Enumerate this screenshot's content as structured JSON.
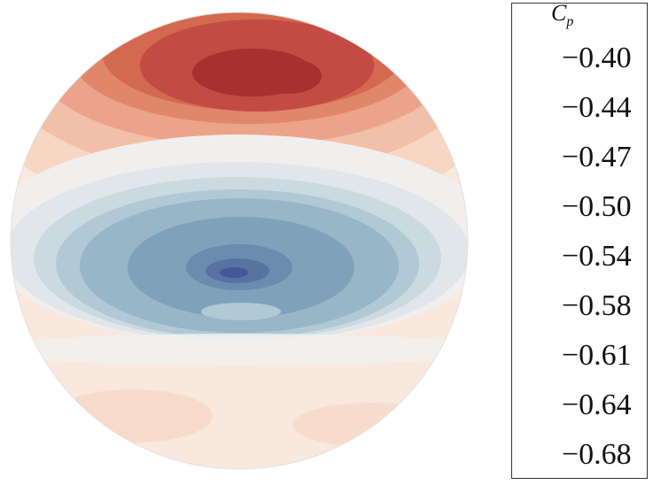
{
  "chart_data": {
    "type": "heatmap",
    "title": "",
    "colorbar": {
      "label": "C",
      "label_subscript": "p",
      "tick_labels": [
        "−0.40",
        "−0.44",
        "−0.47",
        "−0.50",
        "−0.54",
        "−0.58",
        "−0.61",
        "−0.64",
        "−0.68"
      ],
      "range": [
        -0.68,
        -0.4
      ],
      "levels": [
        {
          "value": -0.4,
          "color": "#a8302e"
        },
        {
          "value": -0.42,
          "color": "#c24b43"
        },
        {
          "value": -0.44,
          "color": "#d3694f"
        },
        {
          "value": -0.45,
          "color": "#e0866a"
        },
        {
          "value": -0.47,
          "color": "#eba38a"
        },
        {
          "value": -0.49,
          "color": "#f2bfa8"
        },
        {
          "value": -0.5,
          "color": "#f7d6c4"
        },
        {
          "value": -0.52,
          "color": "#f8e8de"
        },
        {
          "value": -0.54,
          "color": "#f1efee"
        },
        {
          "value": -0.56,
          "color": "#e1e6ea"
        },
        {
          "value": -0.58,
          "color": "#cbd9e1"
        },
        {
          "value": -0.6,
          "color": "#b1c8d5"
        },
        {
          "value": -0.61,
          "color": "#97b6c8"
        },
        {
          "value": -0.63,
          "color": "#7fa2bb"
        },
        {
          "value": -0.64,
          "color": "#6a8cae"
        },
        {
          "value": -0.66,
          "color": "#56749f"
        },
        {
          "value": -0.68,
          "color": "#44589a"
        }
      ]
    }
  }
}
